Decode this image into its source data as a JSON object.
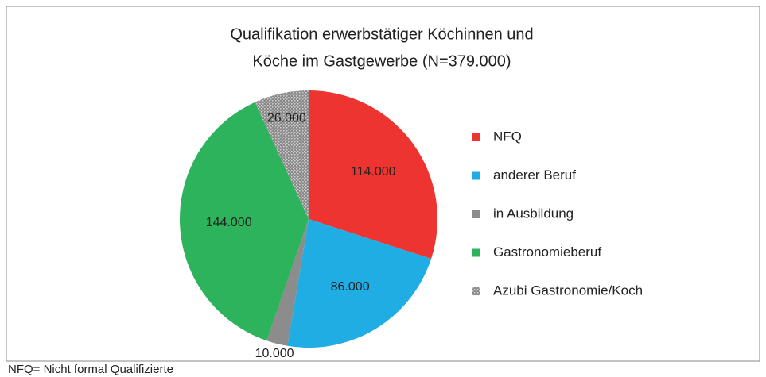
{
  "chart_data": {
    "type": "pie",
    "title": [
      "Qualifikation erwerbstätiger Köchinnen und",
      "Köche im Gastgewerbe (N=379.000)"
    ],
    "categories": [
      "NFQ",
      "anderer Beruf",
      "in Ausbildung",
      "Gastronomieberuf",
      "Azubi Gastronomie/Koch"
    ],
    "values": [
      114000,
      86000,
      10000,
      144000,
      26000
    ],
    "value_labels": [
      "114.000",
      "86.000",
      "10.000",
      "144.000",
      "26.000"
    ],
    "colors": [
      "#ee3430",
      "#20ade3",
      "#8c8c8c",
      "#2db35c",
      "pattern"
    ],
    "legend": "right",
    "footnote": "NFQ= Nicht formal Qualifizierte"
  }
}
